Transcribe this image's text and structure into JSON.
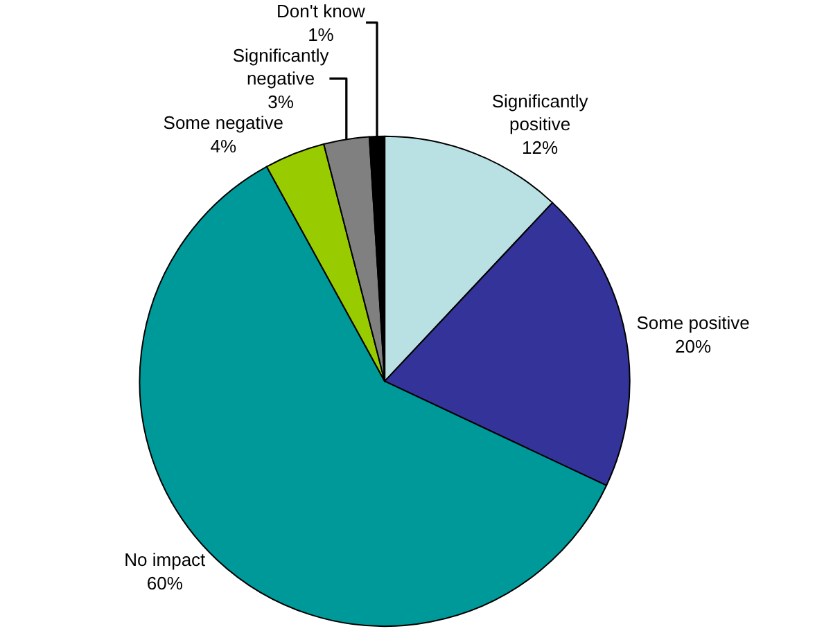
{
  "chart_data": {
    "type": "pie",
    "categories": [
      "Significantly positive",
      "Some positive",
      "No impact",
      "Some negative",
      "Significantly negative",
      "Don't know"
    ],
    "values": [
      12,
      20,
      60,
      4,
      3,
      1
    ],
    "value_labels": [
      "12%",
      "20%",
      "60%",
      "4%",
      "3%",
      "1%"
    ],
    "colors": [
      "#b9e0e3",
      "#333399",
      "#009999",
      "#99cc00",
      "#808080",
      "#000000"
    ],
    "legend": false
  }
}
